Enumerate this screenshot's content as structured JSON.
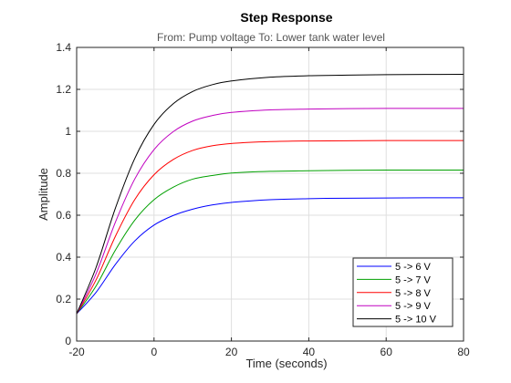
{
  "chart_data": {
    "type": "line",
    "title": "Step Response",
    "subtitle": "From: Pump voltage  To: Lower tank water level",
    "xlabel": "Time (seconds)",
    "ylabel": "Amplitude",
    "xlim": [
      -20,
      80
    ],
    "ylim": [
      0,
      1.4
    ],
    "xticks": [
      "-20",
      "0",
      "20",
      "40",
      "60",
      "80"
    ],
    "yticks": [
      "0",
      "0.2",
      "0.4",
      "0.6",
      "0.8",
      "1",
      "1.2",
      "1.4"
    ],
    "grid": true,
    "legend_position": "bottom-right",
    "series": [
      {
        "name": "5 -> 6 V",
        "color": "#0000ff",
        "x": [
          -20,
          -15,
          -10,
          -5,
          0,
          5,
          10,
          15,
          20,
          30,
          40,
          50,
          60,
          70,
          80
        ],
        "y": [
          0.13,
          0.232,
          0.365,
          0.477,
          0.553,
          0.599,
          0.629,
          0.649,
          0.661,
          0.674,
          0.679,
          0.681,
          0.682,
          0.683,
          0.683
        ]
      },
      {
        "name": "5 -> 7 V",
        "color": "#00a000",
        "x": [
          -20,
          -15,
          -10,
          -5,
          0,
          5,
          10,
          15,
          20,
          30,
          40,
          50,
          60,
          70,
          80
        ],
        "y": [
          0.13,
          0.262,
          0.433,
          0.576,
          0.674,
          0.734,
          0.772,
          0.789,
          0.801,
          0.809,
          0.812,
          0.814,
          0.815,
          0.815,
          0.815
        ]
      },
      {
        "name": "5 -> 8 V",
        "color": "#ff0000",
        "x": [
          -20,
          -15,
          -10,
          -5,
          0,
          5,
          10,
          15,
          20,
          30,
          40,
          50,
          60,
          70,
          80
        ],
        "y": [
          0.13,
          0.291,
          0.499,
          0.674,
          0.793,
          0.866,
          0.909,
          0.931,
          0.942,
          0.951,
          0.954,
          0.955,
          0.956,
          0.956,
          0.956
        ]
      },
      {
        "name": "5 -> 9 V",
        "color": "#c000c0",
        "x": [
          -20,
          -15,
          -10,
          -5,
          0,
          5,
          10,
          15,
          20,
          30,
          40,
          50,
          60,
          70,
          80
        ],
        "y": [
          0.13,
          0.32,
          0.566,
          0.772,
          0.913,
          0.999,
          1.049,
          1.075,
          1.09,
          1.102,
          1.106,
          1.108,
          1.109,
          1.109,
          1.109
        ]
      },
      {
        "name": "5 -> 10 V",
        "color": "#000000",
        "x": [
          -20,
          -15,
          -10,
          -5,
          0,
          5,
          10,
          15,
          20,
          30,
          40,
          50,
          60,
          70,
          80
        ],
        "y": [
          0.13,
          0.35,
          0.633,
          0.87,
          1.033,
          1.132,
          1.19,
          1.222,
          1.24,
          1.258,
          1.265,
          1.268,
          1.27,
          1.271,
          1.272
        ]
      }
    ]
  }
}
